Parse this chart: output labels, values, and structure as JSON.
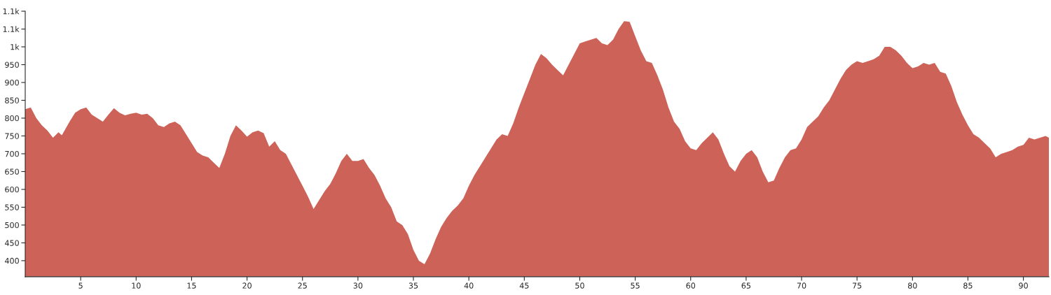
{
  "chart_data": {
    "type": "area",
    "color": "#cd6358",
    "grid": false,
    "x": [
      0,
      0.5,
      1,
      1.5,
      2,
      2.5,
      3,
      3.3,
      4,
      4.5,
      5,
      5.5,
      6,
      6.5,
      7,
      7.5,
      8,
      8.5,
      9,
      9.5,
      10,
      10.5,
      11,
      11.5,
      12,
      12.5,
      13,
      13.5,
      14,
      14.5,
      15,
      15.5,
      16,
      16.5,
      17,
      17.5,
      18,
      18.5,
      19,
      19.5,
      20,
      20.5,
      21,
      21.5,
      22,
      22.5,
      23,
      23.5,
      24,
      24.5,
      25,
      25.5,
      26,
      26.5,
      27,
      27.5,
      28,
      28.5,
      29,
      29.5,
      30,
      30.5,
      31,
      31.5,
      32,
      32.5,
      33,
      33.5,
      34,
      34.5,
      35,
      35.5,
      36,
      36.5,
      37,
      37.5,
      38,
      38.5,
      39,
      39.5,
      40,
      40.5,
      41,
      41.5,
      42,
      42.5,
      43,
      43.5,
      44,
      44.5,
      45,
      45.5,
      46,
      46.5,
      47,
      47.5,
      48,
      48.5,
      49,
      49.5,
      50,
      50.5,
      51,
      51.5,
      52,
      52.5,
      53,
      53.5,
      54,
      54.5,
      55,
      55.5,
      56,
      56.5,
      57,
      57.5,
      58,
      58.5,
      59,
      59.5,
      60,
      60.5,
      61,
      61.5,
      62,
      62.5,
      63,
      63.5,
      64,
      64.5,
      65,
      65.5,
      66,
      66.5,
      67,
      67.5,
      68,
      68.5,
      69,
      69.5,
      70,
      70.5,
      71,
      71.5,
      72,
      72.5,
      73,
      73.5,
      74,
      74.5,
      75,
      75.5,
      76,
      76.5,
      77,
      77.5,
      78,
      78.5,
      79,
      79.5,
      80,
      80.5,
      81,
      81.5,
      82,
      82.5,
      83,
      83.5,
      84,
      84.5,
      85,
      85.5,
      86,
      86.5,
      87,
      87.5,
      88,
      88.5,
      89,
      89.5,
      90,
      90.5,
      91,
      91.5,
      92,
      92.3
    ],
    "values": [
      825,
      830,
      800,
      780,
      765,
      745,
      760,
      752,
      790,
      815,
      825,
      830,
      810,
      800,
      790,
      810,
      828,
      815,
      808,
      812,
      815,
      810,
      812,
      800,
      780,
      775,
      785,
      790,
      780,
      755,
      730,
      705,
      695,
      690,
      675,
      660,
      700,
      750,
      780,
      765,
      748,
      760,
      765,
      758,
      720,
      735,
      710,
      700,
      670,
      640,
      610,
      580,
      545,
      570,
      595,
      615,
      645,
      680,
      700,
      680,
      680,
      685,
      660,
      640,
      610,
      575,
      550,
      510,
      500,
      475,
      430,
      400,
      390,
      420,
      460,
      495,
      520,
      540,
      555,
      575,
      610,
      640,
      665,
      690,
      715,
      740,
      755,
      750,
      785,
      830,
      870,
      910,
      950,
      980,
      968,
      950,
      935,
      920,
      950,
      980,
      1010,
      1015,
      1020,
      1025,
      1010,
      1005,
      1020,
      1050,
      1072,
      1070,
      1030,
      990,
      960,
      955,
      920,
      880,
      830,
      790,
      770,
      735,
      715,
      710,
      730,
      745,
      760,
      740,
      700,
      665,
      650,
      680,
      700,
      710,
      690,
      650,
      620,
      625,
      660,
      690,
      710,
      715,
      740,
      775,
      790,
      805,
      830,
      850,
      880,
      910,
      935,
      950,
      960,
      955,
      960,
      965,
      975,
      1000,
      1000,
      990,
      975,
      955,
      940,
      945,
      955,
      950,
      955,
      930,
      925,
      890,
      845,
      810,
      780,
      755,
      745,
      730,
      715,
      690,
      700,
      705,
      710,
      720,
      725,
      745,
      740,
      745,
      750,
      745
    ],
    "xlim": [
      0,
      92.3
    ],
    "ylim": [
      355,
      1100
    ],
    "xticks": [
      5,
      10,
      15,
      20,
      25,
      30,
      35,
      40,
      45,
      50,
      55,
      60,
      65,
      70,
      75,
      80,
      85,
      90
    ],
    "yticks": [
      400,
      450,
      500,
      550,
      600,
      650,
      700,
      750,
      800,
      850,
      900,
      950,
      {
        "value": 1000,
        "label": "1k"
      },
      {
        "value": 1050,
        "label": "1.1k"
      },
      {
        "value": 1100,
        "label": "1.1k"
      }
    ]
  }
}
